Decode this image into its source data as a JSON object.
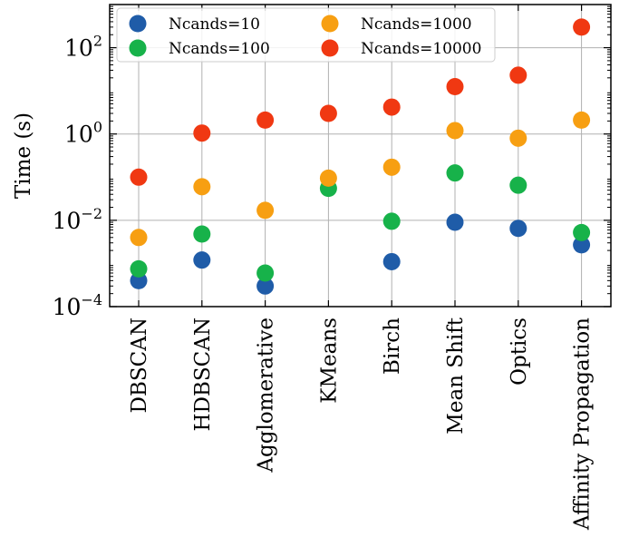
{
  "chart_data": {
    "type": "scatter",
    "categories": [
      "DBSCAN",
      "HDBSCAN",
      "Agglomerative",
      "KMeans",
      "Birch",
      "Mean Shift",
      "Optics",
      "Affinity Propagation"
    ],
    "ylabel": "Time (s)",
    "xlabel": "",
    "yscale": "log",
    "ylim": [
      0.0001,
      1000
    ],
    "y_ticks": [
      {
        "value": 0.0001,
        "base": "10",
        "exp": "−4"
      },
      {
        "value": 0.01,
        "base": "10",
        "exp": "−2"
      },
      {
        "value": 1,
        "base": "10",
        "exp": "0"
      },
      {
        "value": 100,
        "base": "10",
        "exp": "2"
      }
    ],
    "grid": true,
    "legend_position": "top-left",
    "legend_columns": 2,
    "series": [
      {
        "name": "Ncands=10",
        "color": "#1f5ca8",
        "values": [
          0.0004,
          0.0012,
          0.0003,
          null,
          0.0011,
          0.009,
          0.0065,
          0.0027
        ]
      },
      {
        "name": "Ncands=100",
        "color": "#17b24a",
        "values": [
          0.00075,
          0.0048,
          0.0006,
          0.055,
          0.0095,
          0.125,
          0.065,
          0.0052
        ]
      },
      {
        "name": "Ncands=1000",
        "color": "#f79f12",
        "values": [
          0.004,
          0.06,
          0.017,
          0.095,
          0.17,
          1.2,
          0.8,
          2.1
        ]
      },
      {
        "name": "Ncands=10000",
        "color": "#f03812",
        "values": [
          0.1,
          1.05,
          2.1,
          3.0,
          4.2,
          12.5,
          23.0,
          300.0
        ]
      }
    ]
  }
}
